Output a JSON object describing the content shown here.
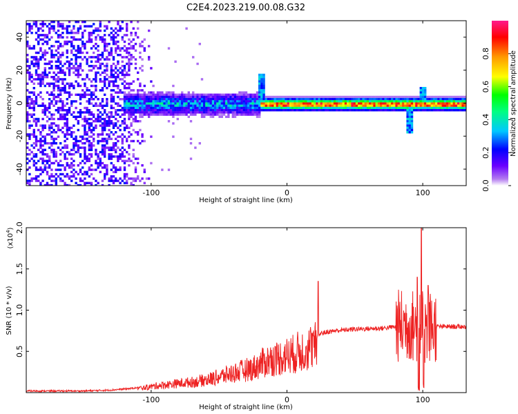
{
  "title": "C2E4.2023.219.00.08.G32",
  "chart_data": [
    {
      "type": "heatmap",
      "xlabel": "Height of straight line (km)",
      "ylabel": "Frequency (Hz)",
      "xlim": [
        -192,
        132
      ],
      "ylim": [
        -50,
        50
      ],
      "xticks": [
        -100,
        0,
        100
      ],
      "xtick_labels": [
        "-100",
        "0",
        "100"
      ],
      "yticks": [
        40,
        20,
        0,
        -20,
        -40
      ],
      "ytick_labels": [
        "40",
        "20",
        "0",
        "-20",
        "-40"
      ],
      "colorbar": {
        "label": "Normalized spectral amplitude",
        "range": [
          0,
          1
        ],
        "ticks": [
          0.0,
          0.2,
          0.4,
          0.6,
          0.8
        ],
        "tick_labels": [
          "0.0",
          "0.2",
          "0.4",
          "0.6",
          "0.8"
        ],
        "colors": [
          "#ffffff",
          "#8a2be2",
          "#0000ff",
          "#00ffff",
          "#00ff00",
          "#ffff00",
          "#ff8000",
          "#ff0000",
          "#ff1a8c"
        ]
      },
      "features": {
        "noise_region_x": [
          -192,
          -100
        ],
        "signal_line_frequency": 0,
        "strong_signal_x": [
          -20,
          130
        ],
        "spikes": [
          {
            "x": -20,
            "freq": 18
          },
          {
            "x": 100,
            "freq": 10
          },
          {
            "x": 90,
            "freq": -17
          }
        ]
      }
    },
    {
      "type": "line",
      "xlabel": "Height of straight line (km)",
      "ylabel": "SNR (10 * v/v)",
      "yscale_label": "(x10",
      "yscale_exponent": "4",
      "yscale_close": ")",
      "xlim": [
        -192,
        132
      ],
      "ylim": [
        0,
        2.0
      ],
      "xticks": [
        -100,
        0,
        100
      ],
      "xtick_labels": [
        "-100",
        "0",
        "100"
      ],
      "yticks": [
        0.5,
        1.0,
        1.5,
        2.0
      ],
      "ytick_labels": [
        "0.5",
        "1.0",
        "1.5",
        "2.0"
      ],
      "series": [
        {
          "color": "#ee2222",
          "x": [
            -192,
            -150,
            -130,
            -115,
            -105,
            -95,
            -85,
            -75,
            -65,
            -55,
            -45,
            -35,
            -25,
            -15,
            -5,
            5,
            15,
            22,
            25,
            35,
            50,
            70,
            80,
            85,
            90,
            95,
            100,
            105,
            110,
            120,
            132
          ],
          "y": [
            0.02,
            0.02,
            0.03,
            0.05,
            0.07,
            0.1,
            0.12,
            0.14,
            0.16,
            0.2,
            0.25,
            0.3,
            0.35,
            0.45,
            0.5,
            0.55,
            0.63,
            0.68,
            0.72,
            0.75,
            0.77,
            0.78,
            0.8,
            0.82,
            0.82,
            0.8,
            0.78,
            0.8,
            0.8,
            0.8,
            0.8
          ]
        }
      ],
      "peaks": [
        {
          "x": 23,
          "y": 1.35
        },
        {
          "x": 99,
          "y": 2.0
        },
        {
          "x": 96,
          "y": 1.4
        },
        {
          "x": 104,
          "y": 1.3
        }
      ]
    }
  ]
}
